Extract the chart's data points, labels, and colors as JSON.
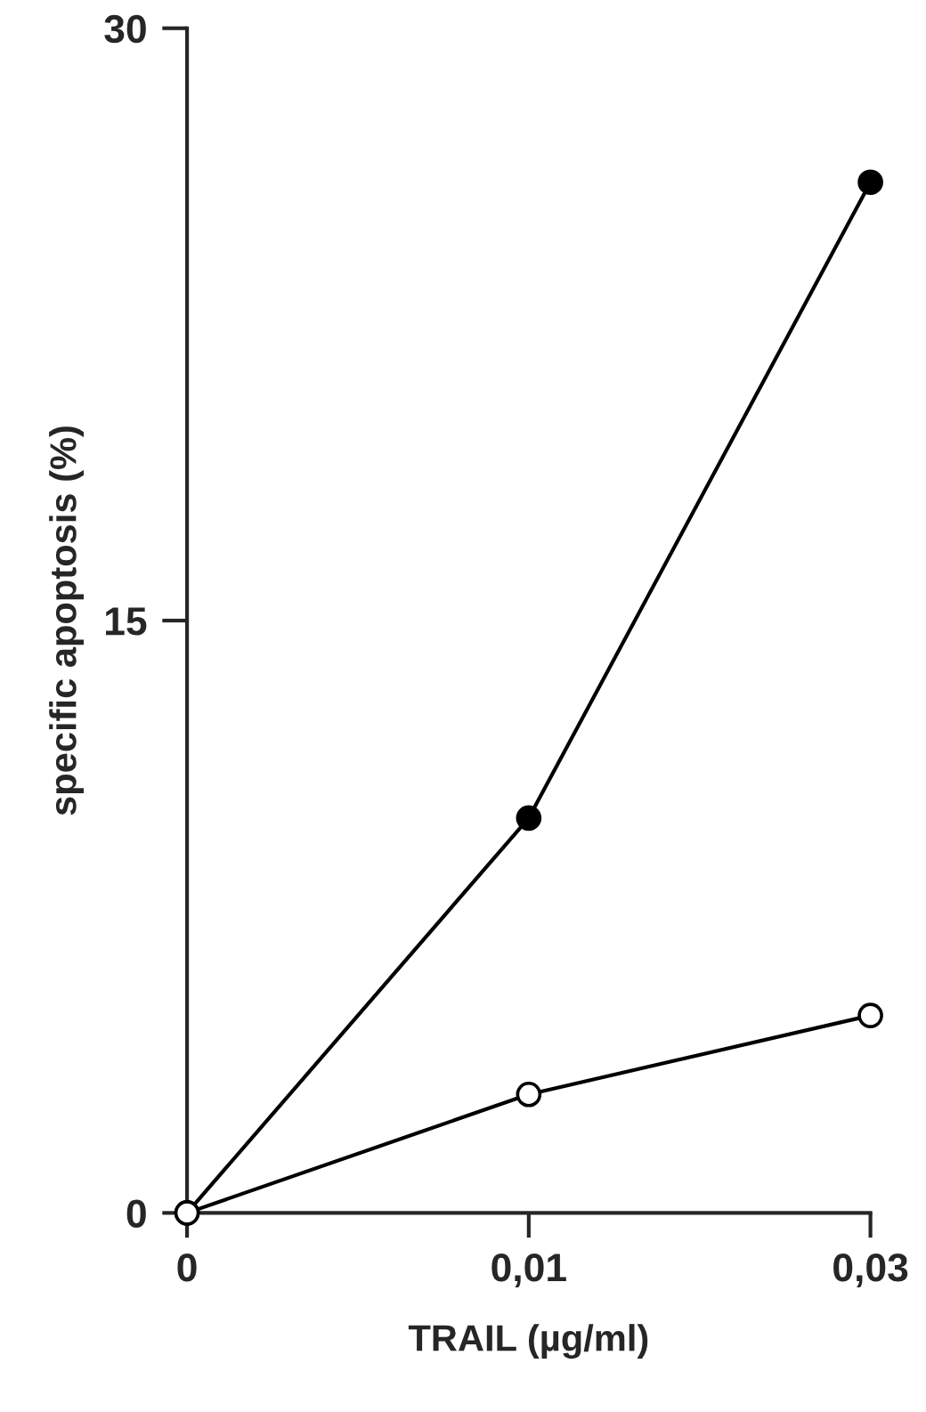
{
  "chart_data": {
    "type": "line",
    "xlabel": "TRAIL (µg/ml)",
    "ylabel": "specific apoptosis (%)",
    "categories": [
      "0",
      "0,01",
      "0,03"
    ],
    "series": [
      {
        "color": "#000000",
        "values": [
          0,
          10,
          26.1
        ]
      },
      {
        "color": "#ffffff",
        "values": [
          0,
          3,
          5
        ]
      }
    ],
    "ylim": [
      0,
      30
    ],
    "yticks": [
      0,
      15,
      30
    ],
    "marker": "circle",
    "line_style": "solid",
    "grid": false,
    "legend": false
  }
}
